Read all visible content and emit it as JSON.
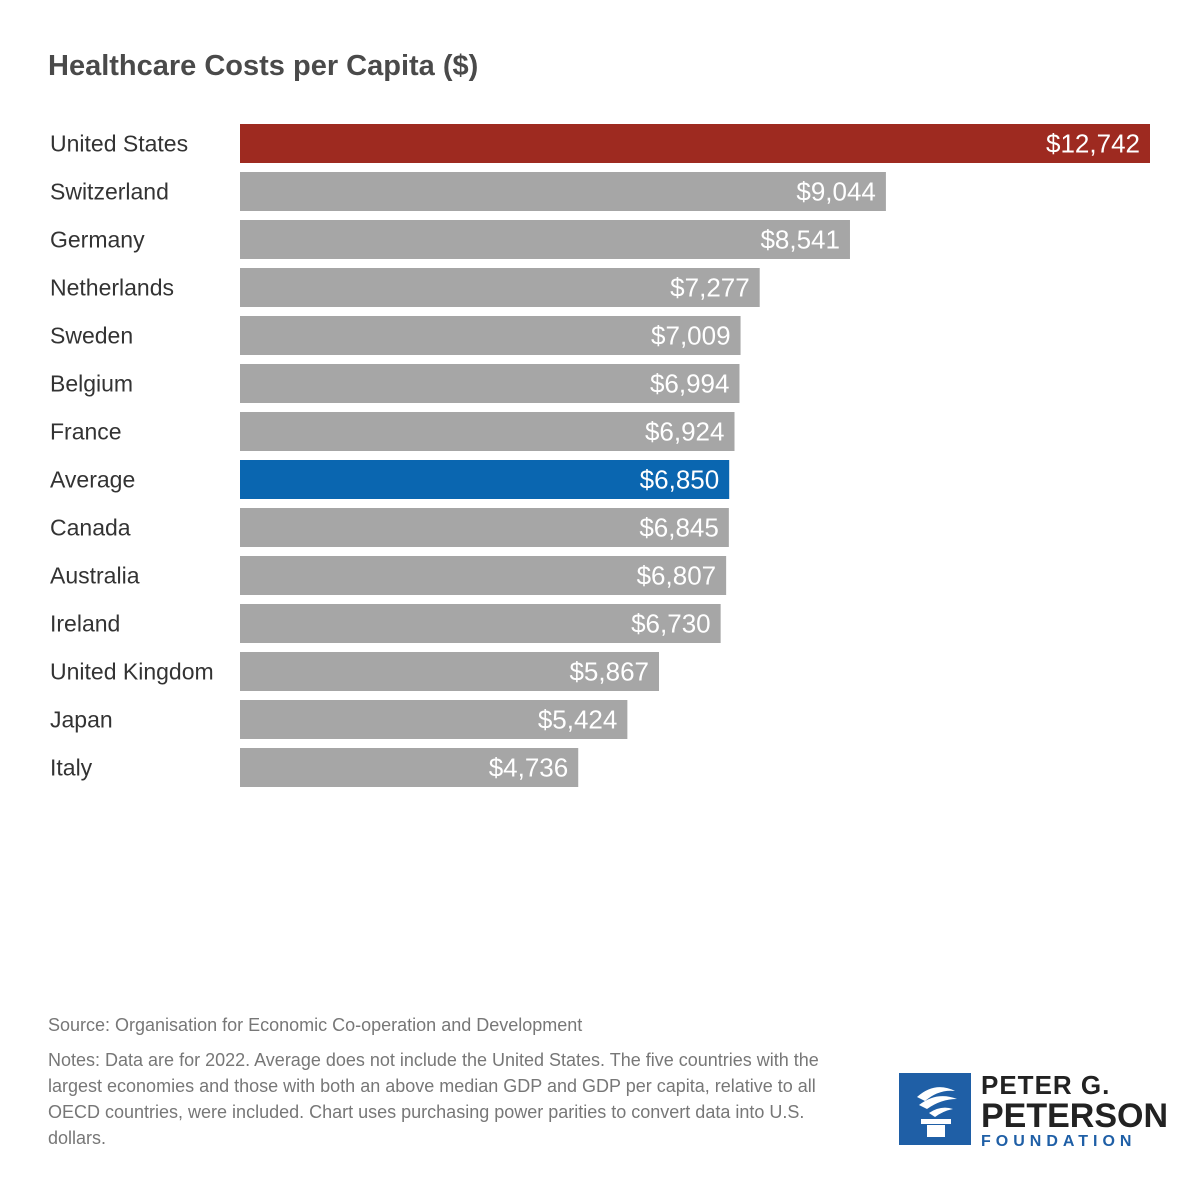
{
  "chart_data": {
    "type": "bar",
    "orientation": "horizontal",
    "title": "Healthcare Costs per Capita ($)",
    "categories": [
      "United States",
      "Switzerland",
      "Germany",
      "Netherlands",
      "Sweden",
      "Belgium",
      "France",
      "Average",
      "Canada",
      "Australia",
      "Ireland",
      "United Kingdom",
      "Japan",
      "Italy"
    ],
    "values": [
      12742,
      9044,
      8541,
      7277,
      7009,
      6994,
      6924,
      6850,
      6845,
      6807,
      6730,
      5867,
      5424,
      4736
    ],
    "value_labels": [
      "$12,742",
      "$9,044",
      "$8,541",
      "$7,277",
      "$7,009",
      "$6,994",
      "$6,924",
      "$6,850",
      "$6,845",
      "$6,807",
      "$6,730",
      "$5,867",
      "$5,424",
      "$4,736"
    ],
    "highlight": {
      "United States": "#9e2a20",
      "Average": "#0a66b0"
    },
    "bar_color": "#a6a6a6",
    "label_color": "#ffffff",
    "grid": false
  },
  "footer": {
    "source": "Source: Organisation for Economic Co-operation and Development",
    "notes": "Notes: Data are for 2022. Average does not include the United States. The five countries with the largest economies and those with both an above median GDP and GDP per capita, relative to all OECD countries, were included. Chart uses purchasing power parities to convert data into U.S. dollars."
  },
  "logo": {
    "line1": "PETER G.",
    "line2": "PETERSON",
    "line3": "FOUNDATION",
    "color": "#1f5fa6"
  }
}
